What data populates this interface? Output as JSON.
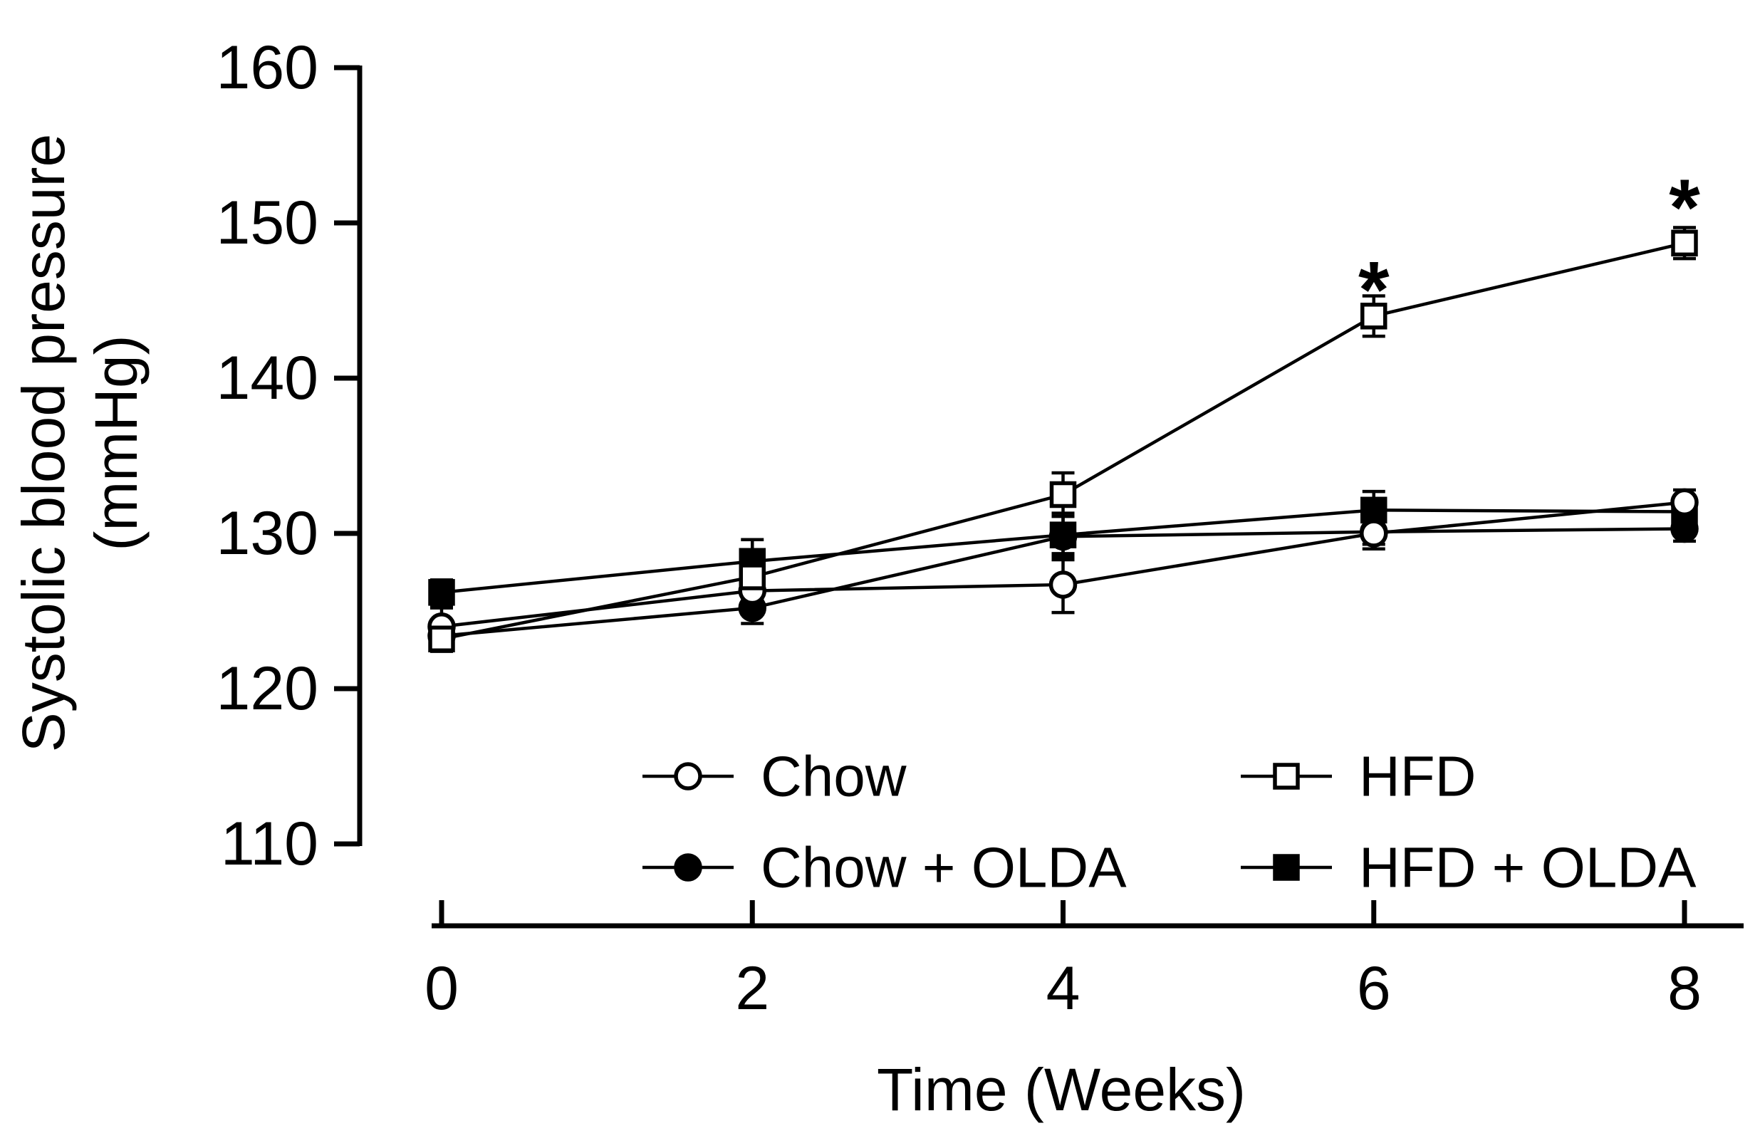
{
  "colors": {
    "foreground": "#000000",
    "background": "#ffffff"
  },
  "chart_data": {
    "type": "line",
    "title": "",
    "xlabel": "Time (Weeks)",
    "ylabel": "Systolic blood pressure (mmHg)",
    "ylabel_lines": [
      "Systolic blood pressure",
      "(mmHg)"
    ],
    "x": [
      0,
      2,
      4,
      6,
      8
    ],
    "xticks": [
      0,
      2,
      4,
      6,
      8
    ],
    "yticks": [
      110,
      120,
      130,
      140,
      150,
      160
    ],
    "xlim": [
      -0.1,
      8.4
    ],
    "ylim": [
      110,
      160
    ],
    "grid": false,
    "legend_position": "inside-bottom",
    "legend_columns": 2,
    "series": [
      {
        "name": "Chow",
        "marker": "circle-open",
        "values": [
          124.0,
          126.3,
          126.7,
          130.0,
          132.0
        ],
        "errors": [
          1.2,
          1.5,
          1.8,
          1.0,
          0.8
        ]
      },
      {
        "name": "Chow + OLDA",
        "marker": "circle-filled",
        "values": [
          123.4,
          125.2,
          129.8,
          130.1,
          130.3
        ],
        "errors": [
          0.8,
          1.0,
          1.5,
          0.8,
          0.8
        ]
      },
      {
        "name": "HFD",
        "marker": "square-open",
        "values": [
          123.2,
          127.2,
          132.5,
          144.0,
          148.7
        ],
        "errors": [
          0.8,
          1.5,
          1.4,
          1.3,
          1.0
        ]
      },
      {
        "name": "HFD + OLDA",
        "marker": "square-filled",
        "values": [
          126.2,
          128.2,
          129.9,
          131.5,
          131.4
        ],
        "errors": [
          0.8,
          1.4,
          1.2,
          1.2,
          0.9
        ]
      }
    ],
    "annotations": [
      {
        "text": "*",
        "x": 6,
        "y": 146.6
      },
      {
        "text": "*",
        "x": 8,
        "y": 151.9
      }
    ]
  }
}
